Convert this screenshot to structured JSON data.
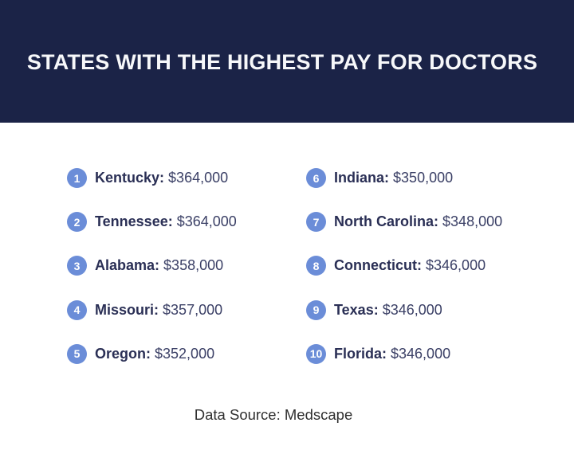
{
  "title": "STATES WITH THE HIGHEST PAY FOR DOCTORS",
  "source": "Data Source: Medscape",
  "chart_data": {
    "type": "table",
    "title": "STATES WITH THE HIGHEST PAY FOR DOCTORS",
    "categories": [
      "Kentucky",
      "Tennessee",
      "Alabama",
      "Missouri",
      "Oregon",
      "Indiana",
      "North Carolina",
      "Connecticut",
      "Texas",
      "Florida"
    ],
    "values": [
      364000,
      364000,
      358000,
      357000,
      352000,
      350000,
      348000,
      346000,
      346000,
      346000
    ],
    "ranks": [
      1,
      2,
      3,
      4,
      5,
      6,
      7,
      8,
      9,
      10
    ],
    "value_format": "USD",
    "annotation": "Data Source: Medscape",
    "layout": "two-column ranked list, ranks 1-5 left, 6-10 right"
  },
  "colors": {
    "header_background": "#1b2347",
    "title_text": "#f7f8fa",
    "badge_background": "#6b8dd8",
    "badge_text": "#ffffff",
    "state_text": "#2a2f55",
    "value_text": "#3b4066",
    "source_text": "#2f2f2f",
    "page_background": "#ffffff"
  },
  "ranking": [
    {
      "rank": "1",
      "state": "Kentucky:",
      "value": "$364,000"
    },
    {
      "rank": "2",
      "state": "Tennessee:",
      "value": "$364,000"
    },
    {
      "rank": "3",
      "state": "Alabama:",
      "value": "$358,000"
    },
    {
      "rank": "4",
      "state": "Missouri:",
      "value": "$357,000"
    },
    {
      "rank": "5",
      "state": "Oregon:",
      "value": "$352,000"
    },
    {
      "rank": "6",
      "state": "Indiana:",
      "value": "$350,000"
    },
    {
      "rank": "7",
      "state": "North Carolina:",
      "value": "$348,000"
    },
    {
      "rank": "8",
      "state": "Connecticut:",
      "value": "$346,000"
    },
    {
      "rank": "9",
      "state": "Texas:",
      "value": "$346,000"
    },
    {
      "rank": "10",
      "state": "Florida:",
      "value": "$346,000"
    }
  ]
}
